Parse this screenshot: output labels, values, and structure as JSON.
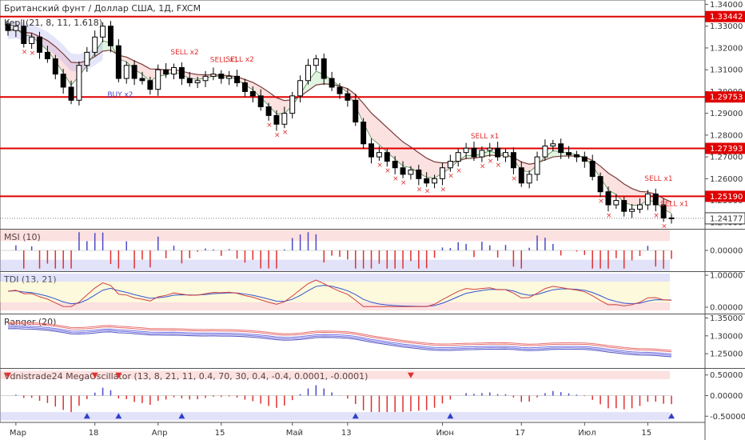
{
  "chart_data": {
    "type": "candlestick",
    "title": "Британский фунт / Доллар США, 1Д, FXCM",
    "main": {
      "indicator_label": "Kepl (21, 8, 11, 1.618)",
      "ylim": [
        1.237,
        1.342
      ],
      "y_ticks": [
        "1.34000",
        "1.33000",
        "1.32000",
        "1.31000",
        "1.30000",
        "1.29000",
        "1.28000",
        "1.27000",
        "1.26000",
        "1.25000",
        "1.24000"
      ],
      "levels": [
        {
          "value": 1.3344,
          "label": "1.33442"
        },
        {
          "value": 1.2975,
          "label": "1.29753"
        },
        {
          "value": 1.2739,
          "label": "1.27393"
        },
        {
          "value": 1.2519,
          "label": "1.25190"
        }
      ],
      "last_price": {
        "value": 1.2418,
        "label": "1.24177"
      },
      "signals": [
        {
          "text": "SELL x2",
          "i": 22
        },
        {
          "text": "SELL x1",
          "i": 27
        },
        {
          "text": "SELL x2",
          "i": 29
        },
        {
          "text": "BUY x2",
          "i": 14
        },
        {
          "text": "SELL x1",
          "i": 60
        },
        {
          "text": "SELL x1",
          "i": 82
        },
        {
          "text": "SELL x1",
          "i": 84
        }
      ]
    },
    "panels": [
      {
        "id": "msi",
        "label": "MSI (10)",
        "ylim": [
          -0.4,
          0.4
        ],
        "ticks": [
          "0.00000"
        ]
      },
      {
        "id": "tdi",
        "label": "TDI (13, 21)",
        "ylim": [
          -0.2,
          1.1
        ],
        "ticks": [
          "1.00000",
          "0.00000"
        ]
      },
      {
        "id": "ranger",
        "label": "Ranger (20)",
        "ylim": [
          1.21,
          1.36
        ],
        "ticks": [
          "1.35000",
          "1.30000",
          "1.25000"
        ]
      },
      {
        "id": "mega",
        "label": "Vdnistrade24 MegaOscillator (13, 8, 21, 11, 0.4, 70, 30, 0.4, -0.4, 0.0001, -0.0001)",
        "ylim": [
          -0.65,
          0.65
        ],
        "ticks": [
          "0.50000",
          "0.00000",
          "-0.50000"
        ]
      }
    ],
    "x_labels": [
      {
        "text": "Мар",
        "i": 1
      },
      {
        "text": "18",
        "i": 11
      },
      {
        "text": "Апр",
        "i": 19
      },
      {
        "text": "15",
        "i": 27
      },
      {
        "text": "Май",
        "i": 36
      },
      {
        "text": "13",
        "i": 43
      },
      {
        "text": "Июн",
        "i": 55
      },
      {
        "text": "17",
        "i": 65
      },
      {
        "text": "Июл",
        "i": 73
      },
      {
        "text": "15",
        "i": 81
      }
    ],
    "closes": [
      1.328,
      1.33,
      1.322,
      1.325,
      1.318,
      1.315,
      1.308,
      1.302,
      1.296,
      1.312,
      1.318,
      1.325,
      1.33,
      1.321,
      1.306,
      1.312,
      1.306,
      1.305,
      1.301,
      1.31,
      1.308,
      1.311,
      1.306,
      1.304,
      1.305,
      1.307,
      1.308,
      1.306,
      1.307,
      1.304,
      1.3,
      1.298,
      1.293,
      1.289,
      1.285,
      1.29,
      1.298,
      1.305,
      1.312,
      1.315,
      1.306,
      1.302,
      1.299,
      1.296,
      1.286,
      1.276,
      1.27,
      1.272,
      1.268,
      1.265,
      1.262,
      1.264,
      1.26,
      1.258,
      1.26,
      1.265,
      1.268,
      1.272,
      1.274,
      1.27,
      1.273,
      1.274,
      1.27,
      1.272,
      1.265,
      1.258,
      1.262,
      1.27,
      1.275,
      1.276,
      1.272,
      1.271,
      1.27,
      1.268,
      1.261,
      1.254,
      1.248,
      1.25,
      1.245,
      1.246,
      1.248,
      1.253,
      1.248,
      1.242,
      1.2418
    ]
  }
}
